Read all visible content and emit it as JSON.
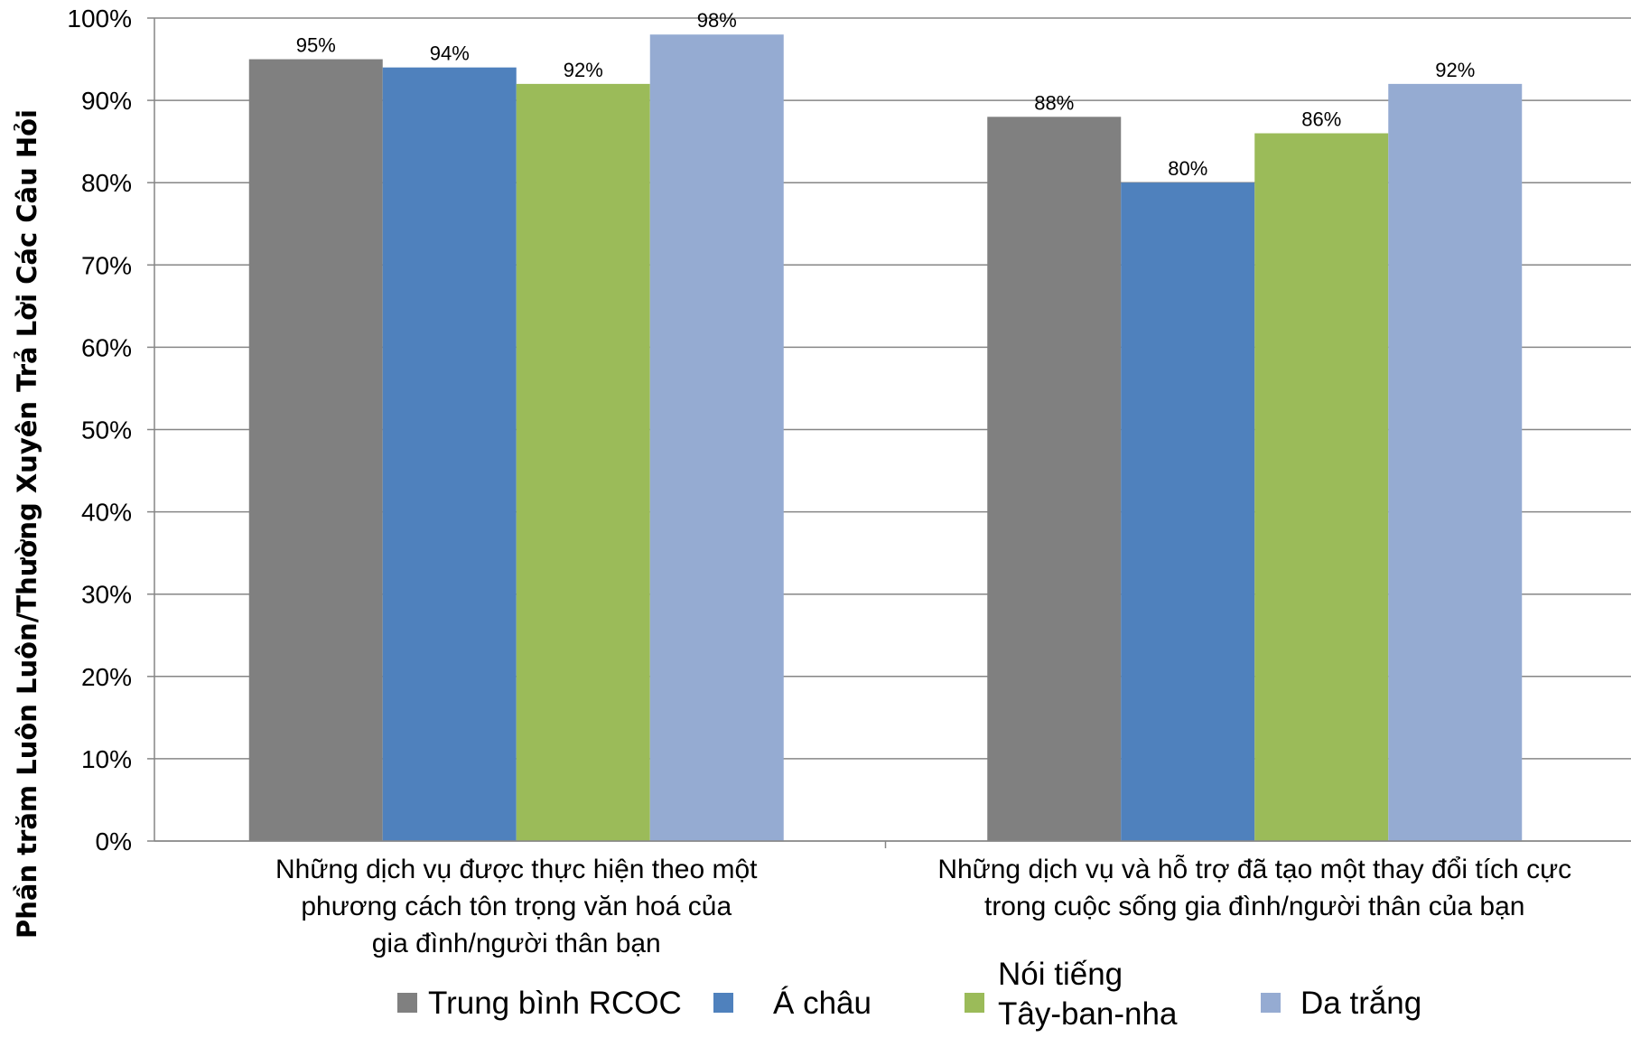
{
  "chart_data": {
    "type": "bar",
    "ylabel": "Phần trăm Luôn Luôn/Thường Xuyên Trả Lời Các Câu Hỏi",
    "xlabel": "",
    "ylim": [
      0,
      100
    ],
    "yticks": [
      "0%",
      "10%",
      "20%",
      "30%",
      "40%",
      "50%",
      "60%",
      "70%",
      "80%",
      "90%",
      "100%"
    ],
    "grid": true,
    "legend_position": "bottom",
    "categories": [
      [
        "Những dịch vụ được thực hiện theo một",
        "phương cách tôn trọng văn hoá của",
        "gia đình/người thân bạn"
      ],
      [
        "Những dịch vụ và hỗ trợ đã tạo một thay đổi tích cực",
        "trong cuộc sống gia đình/người thân của bạn"
      ]
    ],
    "series": [
      {
        "name": "Trung bình RCOC",
        "color": "#808080",
        "values": [
          95,
          88
        ],
        "labels": [
          "95%",
          "88%"
        ]
      },
      {
        "name": "Á châu",
        "color": "#4f81bd",
        "values": [
          94,
          80
        ],
        "labels": [
          "94%",
          "80%"
        ]
      },
      {
        "name": "Nói tiếng Tây-ban-nha",
        "name_lines": [
          "Nói tiếng",
          "Tây-ban-nha"
        ],
        "color": "#9bbb59",
        "values": [
          92,
          86
        ],
        "labels": [
          "92%",
          "86%"
        ]
      },
      {
        "name": "Da trắng",
        "color": "#95abd2",
        "values": [
          98,
          92
        ],
        "labels": [
          "98%",
          "92%"
        ]
      }
    ]
  }
}
